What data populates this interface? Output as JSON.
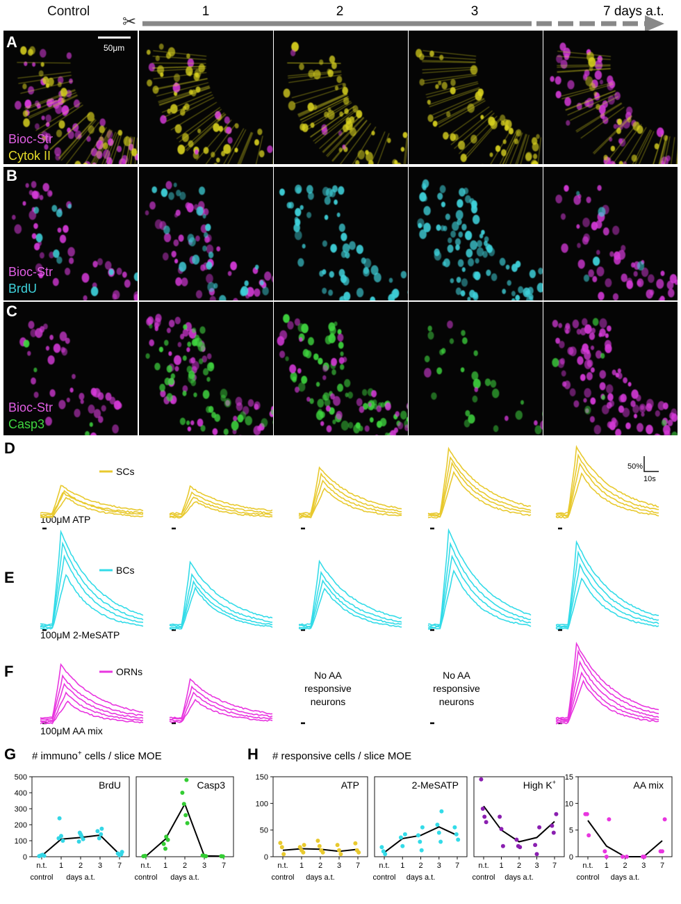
{
  "colors": {
    "sc": "#e8c92e",
    "bc": "#33dbe8",
    "orn": "#e835df",
    "brdu": "#34d6e6",
    "casp3": "#33cc33",
    "atp": "#e8c92e",
    "mesatp": "#33dbe8",
    "highk": "#8a1fb0",
    "aamix": "#e835df",
    "axis": "#111111",
    "mean_line": "#000000",
    "timeline": "#888888",
    "micro_magenta": "#d63ad9",
    "micro_yellow": "#d9d21f",
    "micro_cyan": "#3fd3dc",
    "micro_green": "#3fd63f"
  },
  "header": {
    "control_label": "Control",
    "scissors_icon": "✂",
    "timepoints": [
      "1",
      "2",
      "3"
    ],
    "final_label": "7 days a.t."
  },
  "panels": {
    "A": {
      "letter": "A",
      "scale_bar": "50μm",
      "labels": [
        "Bioc-Str",
        "Cytok II"
      ]
    },
    "B": {
      "letter": "B",
      "labels": [
        "Bioc-Str",
        "BrdU"
      ]
    },
    "C": {
      "letter": "C",
      "labels": [
        "Bioc-Str",
        "Casp3"
      ]
    },
    "D": {
      "letter": "D",
      "legend": "SCs",
      "stimulus": "100μM ATP",
      "scale_y": "50%",
      "scale_x": "10s"
    },
    "E": {
      "letter": "E",
      "legend": "BCs",
      "stimulus": "100μM 2-MeSATP"
    },
    "F": {
      "letter": "F",
      "legend": "ORNs",
      "stimulus": "100μM AA mix",
      "no_response_lines": [
        "No AA",
        "responsive",
        "neurons"
      ]
    },
    "G": {
      "letter": "G",
      "title": "# immuno",
      "title_sup": "+",
      "title_rest": " cells / slice MOE"
    },
    "H": {
      "letter": "H",
      "title": "# responsive cells / slice MOE"
    }
  },
  "chart_data": [
    {
      "type": "scatter",
      "title": "BrdU",
      "ylabel": "# immuno+ cells / slice MOE",
      "categories": [
        "n.t.",
        "1",
        "2",
        "3",
        "7"
      ],
      "ylim": [
        0,
        500
      ],
      "yticks": [
        "0",
        "100",
        "200",
        "300",
        "400",
        "500"
      ],
      "points": [
        [
          0,
          4
        ],
        [
          0,
          8
        ],
        [
          0,
          12
        ],
        [
          0,
          6
        ],
        [
          1,
          240
        ],
        [
          1,
          130
        ],
        [
          1,
          100
        ],
        [
          1,
          115
        ],
        [
          2,
          150
        ],
        [
          2,
          130
        ],
        [
          2,
          110
        ],
        [
          2,
          95
        ],
        [
          2,
          140
        ],
        [
          3,
          175
        ],
        [
          3,
          160
        ],
        [
          3,
          115
        ],
        [
          3,
          140
        ],
        [
          4,
          30
        ],
        [
          4,
          20
        ],
        [
          4,
          10
        ],
        [
          4,
          15
        ]
      ],
      "mean": [
        5,
        110,
        120,
        135,
        15
      ],
      "xlabel_left": "control",
      "xlabel_right": "days a.t."
    },
    {
      "type": "scatter",
      "title": "Casp3",
      "categories": [
        "n.t.",
        "1",
        "2",
        "3",
        "7"
      ],
      "ylim": [
        0,
        500
      ],
      "yticks": [],
      "points": [
        [
          0,
          3
        ],
        [
          0,
          5
        ],
        [
          1,
          125
        ],
        [
          1,
          105
        ],
        [
          1,
          80
        ],
        [
          1,
          50
        ],
        [
          2,
          480
        ],
        [
          2,
          400
        ],
        [
          2,
          330
        ],
        [
          2,
          260
        ],
        [
          2,
          210
        ],
        [
          3,
          8
        ],
        [
          3,
          5
        ],
        [
          3,
          3
        ],
        [
          4,
          3
        ],
        [
          4,
          2
        ]
      ],
      "mean": [
        3,
        110,
        330,
        5,
        3
      ],
      "xlabel_left": "control",
      "xlabel_right": "days a.t."
    },
    {
      "type": "scatter",
      "title": "ATP",
      "ylabel": "# responsive cells / slice MOE",
      "categories": [
        "n.t.",
        "1",
        "2",
        "3",
        "7"
      ],
      "ylim": [
        0,
        150
      ],
      "yticks": [
        "0",
        "50",
        "100",
        "150"
      ],
      "points": [
        [
          0,
          26
        ],
        [
          0,
          18
        ],
        [
          0,
          5
        ],
        [
          1,
          22
        ],
        [
          1,
          18
        ],
        [
          1,
          12
        ],
        [
          1,
          8
        ],
        [
          2,
          30
        ],
        [
          2,
          20
        ],
        [
          2,
          12
        ],
        [
          2,
          8
        ],
        [
          3,
          22
        ],
        [
          3,
          12
        ],
        [
          3,
          5
        ],
        [
          4,
          25
        ],
        [
          4,
          12
        ],
        [
          4,
          8
        ]
      ],
      "mean": [
        12,
        15,
        14,
        10,
        14
      ],
      "xlabel_left": "control",
      "xlabel_right": "days a.t."
    },
    {
      "type": "scatter",
      "title": "2-MeSATP",
      "categories": [
        "n.t.",
        "1",
        "2",
        "3",
        "7"
      ],
      "ylim": [
        0,
        150
      ],
      "yticks": [],
      "points": [
        [
          0,
          18
        ],
        [
          0,
          10
        ],
        [
          0,
          5
        ],
        [
          1,
          42
        ],
        [
          1,
          36
        ],
        [
          1,
          20
        ],
        [
          2,
          55
        ],
        [
          2,
          40
        ],
        [
          2,
          28
        ],
        [
          2,
          12
        ],
        [
          3,
          85
        ],
        [
          3,
          60
        ],
        [
          3,
          45
        ],
        [
          3,
          28
        ],
        [
          4,
          55
        ],
        [
          4,
          42
        ],
        [
          4,
          32
        ]
      ],
      "mean": [
        8,
        34,
        40,
        56,
        40
      ],
      "xlabel_left": "control",
      "xlabel_right": "days a.t."
    },
    {
      "type": "scatter",
      "title": "High K",
      "title_sup": "+",
      "categories": [
        "n.t.",
        "1",
        "2",
        "3",
        "7"
      ],
      "ylim": [
        0,
        150
      ],
      "yticks": [],
      "points": [
        [
          0,
          145
        ],
        [
          0,
          90
        ],
        [
          0,
          75
        ],
        [
          0,
          65
        ],
        [
          1,
          75
        ],
        [
          1,
          52
        ],
        [
          1,
          20
        ],
        [
          2,
          32
        ],
        [
          2,
          20
        ],
        [
          2,
          18
        ],
        [
          3,
          55
        ],
        [
          3,
          22
        ],
        [
          3,
          5
        ],
        [
          4,
          80
        ],
        [
          4,
          58
        ],
        [
          4,
          45
        ]
      ],
      "mean": [
        95,
        50,
        28,
        36,
        66
      ],
      "xlabel_left": "control",
      "xlabel_right": "days a.t."
    },
    {
      "type": "scatter",
      "title": "AA mix",
      "categories": [
        "n.t.",
        "1",
        "2",
        "3",
        "7"
      ],
      "ylim": [
        0,
        15
      ],
      "yticks": [
        "0",
        "5",
        "10",
        "15"
      ],
      "points": [
        [
          0,
          8
        ],
        [
          0,
          8
        ],
        [
          0,
          4
        ],
        [
          1,
          7
        ],
        [
          1,
          1
        ],
        [
          1,
          0
        ],
        [
          2,
          0
        ],
        [
          2,
          0
        ],
        [
          3,
          0
        ],
        [
          3,
          0
        ],
        [
          4,
          7
        ],
        [
          4,
          1
        ],
        [
          4,
          1
        ]
      ],
      "mean": [
        6.8,
        2,
        0,
        0,
        3
      ],
      "xlabel_left": "control",
      "xlabel_right": "days a.t."
    }
  ]
}
